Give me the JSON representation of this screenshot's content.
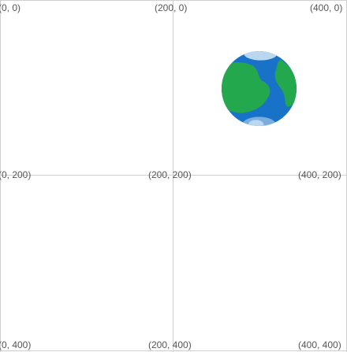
{
  "grid": {
    "labels": {
      "tl": "(0, 0)",
      "tm": "(200, 0)",
      "tr": "(400, 0)",
      "ml": "(0, 200)",
      "mm": "(200, 200)",
      "mr": "(400, 200)",
      "bl": "(0, 400)",
      "bm": "(200, 400)",
      "br": "(400, 400)"
    }
  },
  "globe": {
    "icon": "earth-globe-icon",
    "colors": {
      "ocean": "#1873c8",
      "land": "#23a84e",
      "ice": "#b9d7ef",
      "ice_shadow": "#7aaedc"
    }
  }
}
